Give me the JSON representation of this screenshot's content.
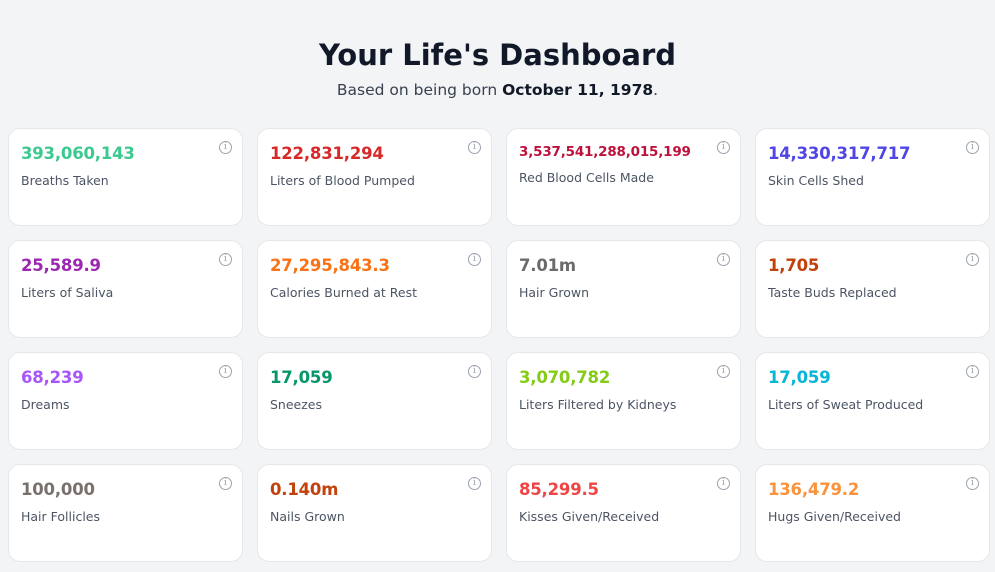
{
  "header": {
    "title": "Your Life's Dashboard",
    "subtitle_prefix": "Based on being born ",
    "birth_date": "October 11, 1978",
    "subtitle_suffix": "."
  },
  "info_icon": "i",
  "cards": [
    {
      "value": "393,060,143",
      "label": "Breaths Taken",
      "color": "#3cc98f"
    },
    {
      "value": "122,831,294",
      "label": "Liters of Blood Pumped",
      "color": "#d62a2a"
    },
    {
      "value": "3,537,541,288,015,199",
      "label": "Red Blood Cells Made",
      "color": "#be123c"
    },
    {
      "value": "14,330,317,717",
      "label": "Skin Cells Shed",
      "color": "#4f46e5"
    },
    {
      "value": "25,589.9",
      "label": "Liters of Saliva",
      "color": "#9c27b0"
    },
    {
      "value": "27,295,843.3",
      "label": "Calories Burned at Rest",
      "color": "#f97316"
    },
    {
      "value": "7.01m",
      "label": "Hair Grown",
      "color": "#6b6b6b"
    },
    {
      "value": "1,705",
      "label": "Taste Buds Replaced",
      "color": "#c2410c"
    },
    {
      "value": "68,239",
      "label": "Dreams",
      "color": "#a855f7"
    },
    {
      "value": "17,059",
      "label": "Sneezes",
      "color": "#059669"
    },
    {
      "value": "3,070,782",
      "label": "Liters Filtered by Kidneys",
      "color": "#84cc16"
    },
    {
      "value": "17,059",
      "label": "Liters of Sweat Produced",
      "color": "#06b6d4"
    },
    {
      "value": "100,000",
      "label": "Hair Follicles",
      "color": "#78716c"
    },
    {
      "value": "0.140m",
      "label": "Nails Grown",
      "color": "#c2410c"
    },
    {
      "value": "85,299.5",
      "label": "Kisses Given/Received",
      "color": "#ef4444"
    },
    {
      "value": "136,479.2",
      "label": "Hugs Given/Received",
      "color": "#fb923c"
    }
  ]
}
